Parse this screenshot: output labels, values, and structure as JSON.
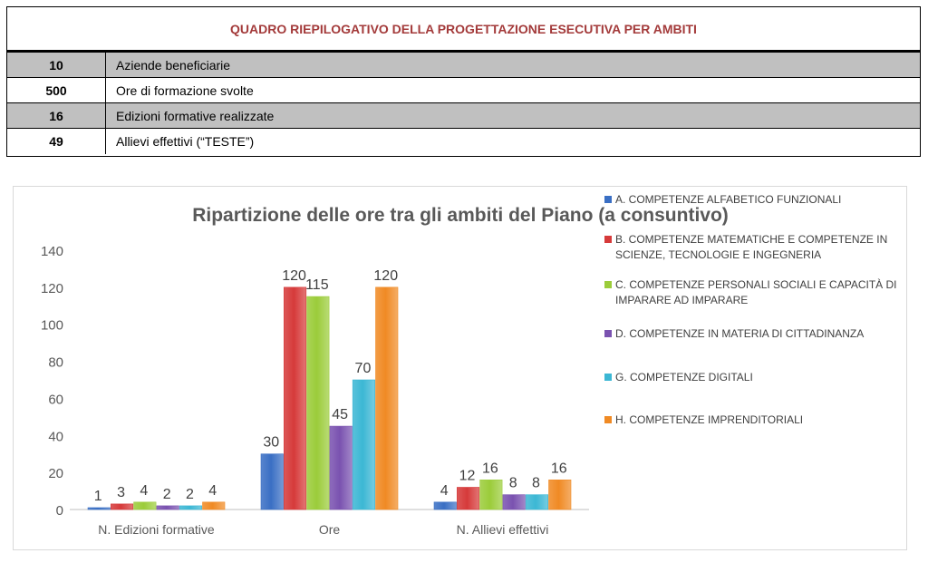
{
  "summary": {
    "title": "QUADRO RIEPILOGATIVO DELLA PROGETTAZIONE ESECUTIVA PER AMBITI",
    "rows": [
      {
        "value": "10",
        "label": "Aziende beneficiarie"
      },
      {
        "value": "500",
        "label": "Ore di formazione svolte"
      },
      {
        "value": "16",
        "label": "Edizioni formative realizzate"
      },
      {
        "value": "49",
        "label": "Allievi effettivi (“TESTE”)"
      }
    ]
  },
  "chart_data": {
    "type": "bar",
    "title": "Ripartizione delle ore tra gli ambiti del Piano (a consuntivo)",
    "categories": [
      "N. Edizioni formative",
      "Ore",
      "N. Allievi effettivi"
    ],
    "ylim": [
      0,
      140
    ],
    "yticks": [
      0,
      20,
      40,
      60,
      80,
      100,
      120,
      140
    ],
    "legend_position": "right",
    "series": [
      {
        "name": "A. COMPETENZE ALFABETICO FUNZIONALI",
        "color": "#3a6fc4",
        "values": [
          1,
          30,
          4
        ]
      },
      {
        "name": "B. COMPETENZE MATEMATICHE E COMPETENZE IN SCIENZE, TECNOLOGIE E INGEGNERIA",
        "color": "#d63a3a",
        "values": [
          3,
          120,
          12
        ]
      },
      {
        "name": "C. COMPETENZE PERSONALI SOCIALI E CAPACITÀ DI IMPARARE AD IMPARARE",
        "color": "#9bcc3a",
        "values": [
          4,
          115,
          16
        ]
      },
      {
        "name": "D. COMPETENZE IN MATERIA DI CITTADINANZA",
        "color": "#7a52b0",
        "values": [
          2,
          45,
          8
        ]
      },
      {
        "name": "G. COMPETENZE DIGITALI",
        "color": "#3cb7d4",
        "values": [
          2,
          70,
          8
        ]
      },
      {
        "name": "H. COMPETENZE IMPRENDITORIALI",
        "color": "#f08a24",
        "values": [
          4,
          120,
          16
        ]
      }
    ]
  }
}
